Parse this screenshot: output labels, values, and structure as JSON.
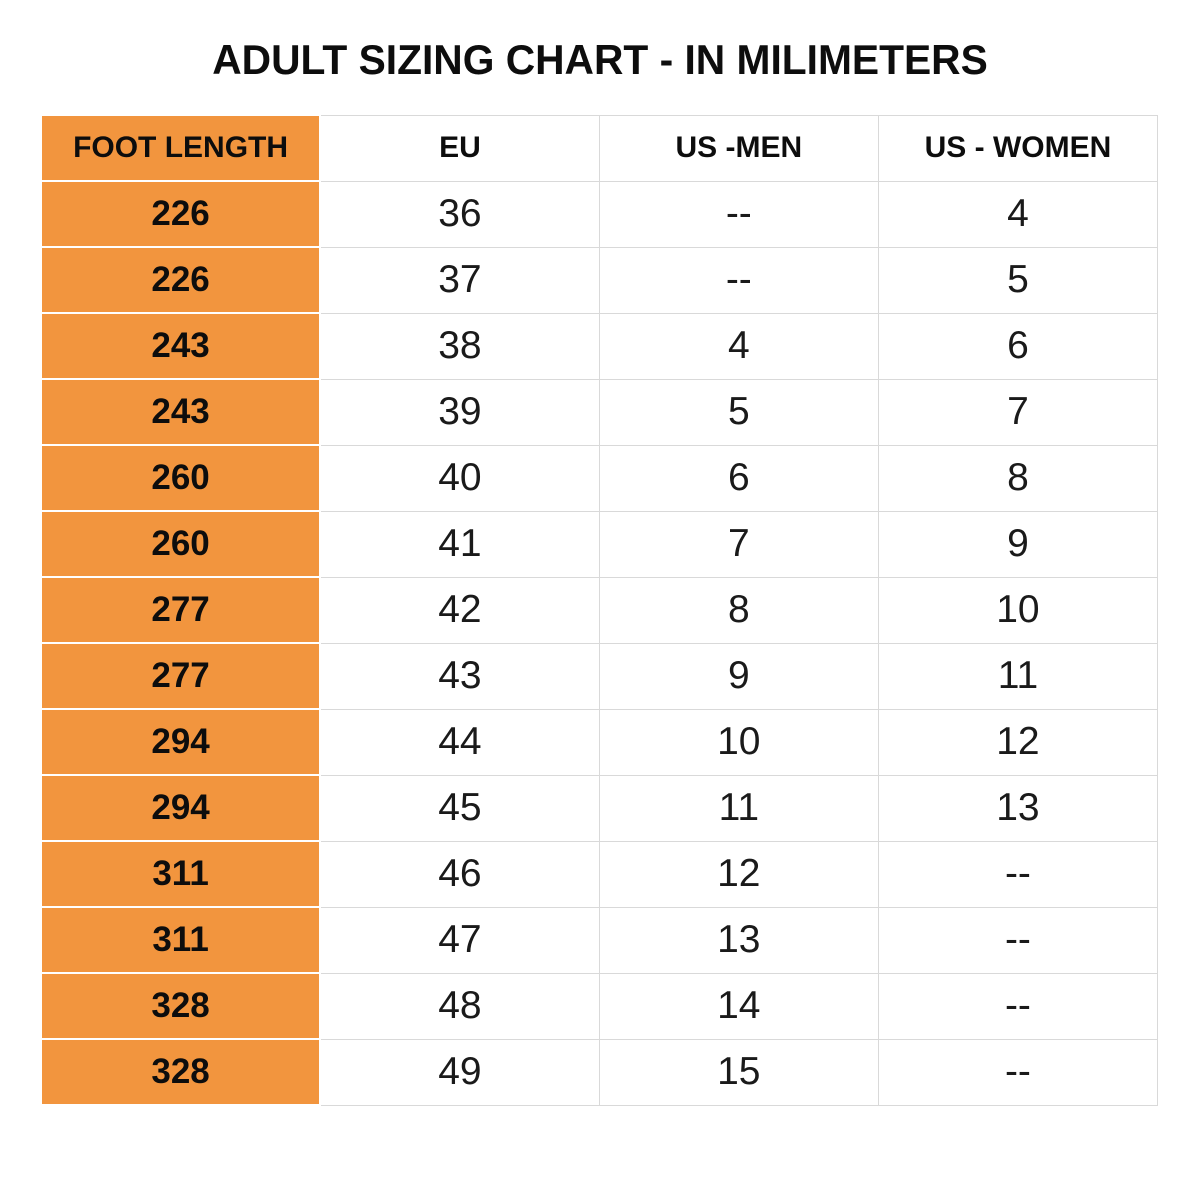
{
  "title": "ADULT SIZING CHART - IN MILIMETERS",
  "colors": {
    "accent_orange": "#F2953E",
    "gridline": "#D9D9D9",
    "text": "#111111",
    "background": "#FFFFFF"
  },
  "table": {
    "headers": [
      "FOOT LENGTH",
      "EU",
      "US -MEN",
      "US - WOMEN"
    ],
    "rows": [
      [
        "226",
        "36",
        "--",
        "4"
      ],
      [
        "226",
        "37",
        "--",
        "5"
      ],
      [
        "243",
        "38",
        "4",
        "6"
      ],
      [
        "243",
        "39",
        "5",
        "7"
      ],
      [
        "260",
        "40",
        "6",
        "8"
      ],
      [
        "260",
        "41",
        "7",
        "9"
      ],
      [
        "277",
        "42",
        "8",
        "10"
      ],
      [
        "277",
        "43",
        "9",
        "11"
      ],
      [
        "294",
        "44",
        "10",
        "12"
      ],
      [
        "294",
        "45",
        "11",
        "13"
      ],
      [
        "311",
        "46",
        "12",
        "--"
      ],
      [
        "311",
        "47",
        "13",
        "--"
      ],
      [
        "328",
        "48",
        "14",
        "--"
      ],
      [
        "328",
        "49",
        "15",
        "--"
      ]
    ]
  },
  "chart_data": {
    "type": "table",
    "title": "ADULT SIZING CHART - IN MILIMETERS",
    "columns": [
      "FOOT LENGTH",
      "EU",
      "US -MEN",
      "US - WOMEN"
    ],
    "rows": [
      {
        "foot_length_mm": 226,
        "eu": 36,
        "us_men": null,
        "us_women": 4
      },
      {
        "foot_length_mm": 226,
        "eu": 37,
        "us_men": null,
        "us_women": 5
      },
      {
        "foot_length_mm": 243,
        "eu": 38,
        "us_men": 4,
        "us_women": 6
      },
      {
        "foot_length_mm": 243,
        "eu": 39,
        "us_men": 5,
        "us_women": 7
      },
      {
        "foot_length_mm": 260,
        "eu": 40,
        "us_men": 6,
        "us_women": 8
      },
      {
        "foot_length_mm": 260,
        "eu": 41,
        "us_men": 7,
        "us_women": 9
      },
      {
        "foot_length_mm": 277,
        "eu": 42,
        "us_men": 8,
        "us_women": 10
      },
      {
        "foot_length_mm": 277,
        "eu": 43,
        "us_men": 9,
        "us_women": 11
      },
      {
        "foot_length_mm": 294,
        "eu": 44,
        "us_men": 10,
        "us_women": 12
      },
      {
        "foot_length_mm": 294,
        "eu": 45,
        "us_men": 11,
        "us_women": 13
      },
      {
        "foot_length_mm": 311,
        "eu": 46,
        "us_men": 12,
        "us_women": null
      },
      {
        "foot_length_mm": 311,
        "eu": 47,
        "us_men": 13,
        "us_women": null
      },
      {
        "foot_length_mm": 328,
        "eu": 48,
        "us_men": 14,
        "us_women": null
      },
      {
        "foot_length_mm": 328,
        "eu": 49,
        "us_men": 15,
        "us_women": null
      }
    ],
    "missing_value_marker": "--",
    "layout": {
      "first_column_highlight": "#F2953E",
      "grid": true
    }
  }
}
